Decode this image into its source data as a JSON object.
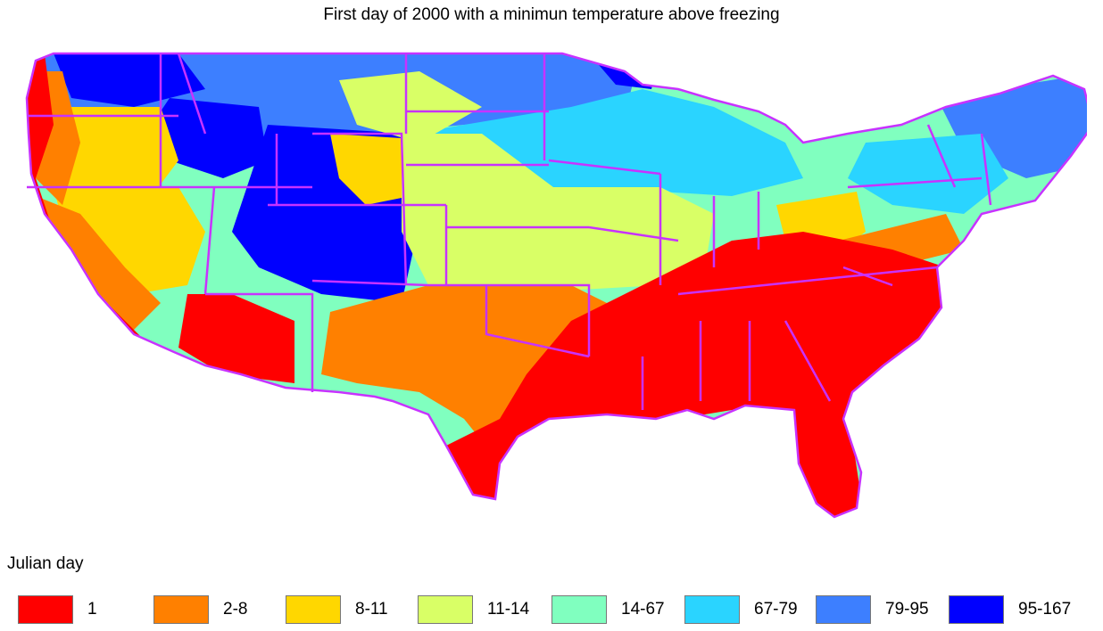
{
  "title": "First day of 2000 with a minimun temperature above freezing",
  "legend": {
    "title": "Julian day",
    "items": [
      {
        "label": "1",
        "color": "#ff0000"
      },
      {
        "label": "2-8",
        "color": "#ff8000"
      },
      {
        "label": "8-11",
        "color": "#ffd700"
      },
      {
        "label": "11-14",
        "color": "#d9ff66"
      },
      {
        "label": "14-67",
        "color": "#80ffbf"
      },
      {
        "label": "67-79",
        "color": "#2ad4ff"
      },
      {
        "label": "79-95",
        "color": "#3d7fff"
      },
      {
        "label": "95-167",
        "color": "#0000ff"
      }
    ]
  },
  "colors": {
    "state_border": "#c832ff",
    "background": "#ffffff"
  }
}
